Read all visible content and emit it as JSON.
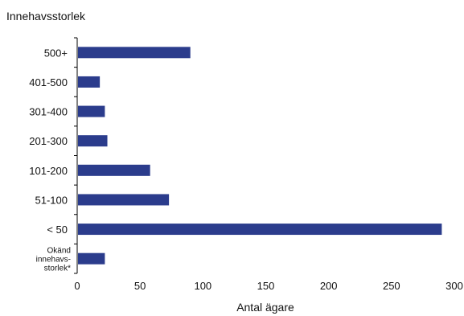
{
  "chart_data": {
    "type": "bar",
    "orientation": "horizontal",
    "title": "",
    "ylabel": "Innehavsstorlek",
    "xlabel": "Antal ägare",
    "categories": [
      "500+",
      "401-500",
      "301-400",
      "201-300",
      "101-200",
      "51-100",
      "< 50",
      "Okänd innehavs-storlek*"
    ],
    "category_lines": [
      [
        "500+"
      ],
      [
        "401-500"
      ],
      [
        "301-400"
      ],
      [
        "201-300"
      ],
      [
        "101-200"
      ],
      [
        "51-100"
      ],
      [
        "< 50"
      ],
      [
        "Okänd",
        "innehavs-",
        "storlek*"
      ]
    ],
    "values": [
      90,
      18,
      22,
      24,
      58,
      73,
      290,
      22
    ],
    "xlim": [
      0,
      300
    ],
    "xticks": [
      0,
      50,
      100,
      150,
      200,
      250,
      300
    ],
    "grid": false,
    "legend": "none",
    "bar_color": "#2b3c8c"
  }
}
